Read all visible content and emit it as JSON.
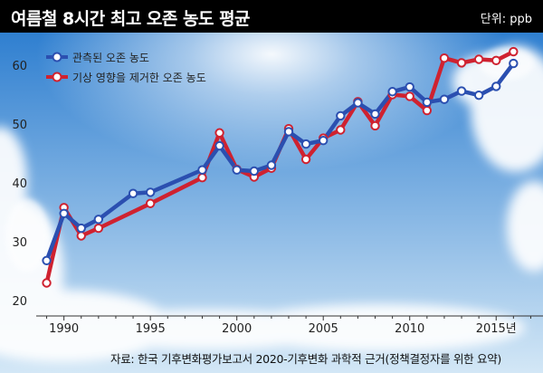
{
  "header": {
    "title": "여름철 8시간 최고 오존 농도 평균",
    "unit": "단위: ppb"
  },
  "source": "자료: 한국 기후변화평가보고서 2020-기후변화 과학적 근거(정책결정자를 위한 요약)",
  "colors": {
    "observed": "#2b4fb0",
    "adjusted": "#cf2230",
    "background_top": "#2f7fd0",
    "background_bottom": "#d3e7f6"
  },
  "chart_data": {
    "type": "line",
    "xlim": [
      1988.5,
      2017.5
    ],
    "ylim": [
      18,
      64
    ],
    "x_ticks": [
      1990,
      1995,
      2000,
      2005,
      2010,
      2015
    ],
    "x_tick_labels": [
      "1990",
      "1995",
      "2000",
      "2005",
      "2010",
      "2015년"
    ],
    "y_ticks": [
      20,
      30,
      40,
      50,
      60
    ],
    "y_tick_labels": [
      "20",
      "30",
      "40",
      "50",
      "60"
    ],
    "grid": false,
    "legend_position": "top-left",
    "series": [
      {
        "name": "관측된 오존 농도",
        "x": [
          1989,
          1990,
          1991,
          1992,
          1994,
          1995,
          1998,
          1999,
          2000,
          2001,
          2002,
          2003,
          2004,
          2005,
          2006,
          2007,
          2008,
          2009,
          2010,
          2011,
          2012,
          2013,
          2014,
          2015,
          2016
        ],
        "y": [
          26.8,
          34.8,
          32.3,
          33.8,
          38.2,
          38.4,
          42.2,
          46.3,
          42.2,
          42.0,
          43.0,
          48.7,
          46.6,
          47.2,
          51.4,
          53.6,
          51.7,
          55.5,
          56.3,
          53.7,
          54.2,
          55.6,
          54.9,
          56.4,
          60.3
        ]
      },
      {
        "name": "기상 영향을 제거한 오존 농도",
        "x": [
          1989,
          1990,
          1991,
          1992,
          1995,
          1998,
          1999,
          2000,
          2001,
          2002,
          2003,
          2004,
          2005,
          2006,
          2007,
          2008,
          2009,
          2010,
          2011,
          2012,
          2013,
          2014,
          2015,
          2016
        ],
        "y": [
          23.0,
          35.8,
          31.0,
          32.3,
          36.5,
          40.9,
          48.5,
          42.3,
          41.0,
          42.5,
          49.2,
          44.0,
          47.6,
          49.0,
          53.8,
          49.7,
          55.0,
          54.7,
          52.3,
          61.2,
          60.4,
          61.0,
          60.8,
          62.3
        ]
      }
    ]
  }
}
